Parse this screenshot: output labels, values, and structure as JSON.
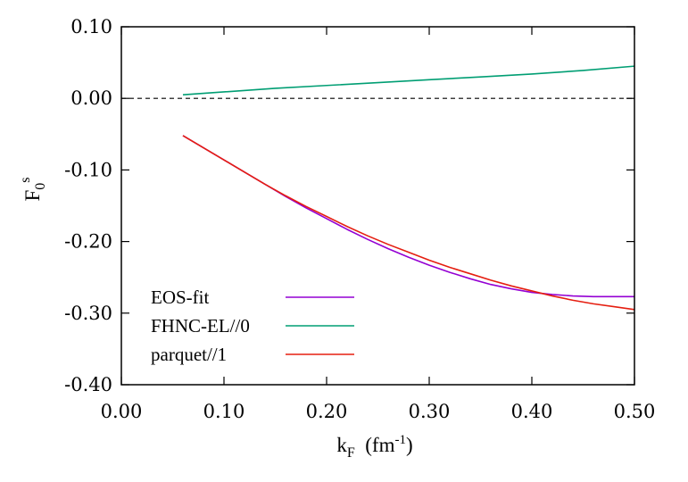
{
  "chart_data": {
    "type": "line",
    "xlabel": {
      "main": "k",
      "sub": "F",
      "unit_prefix": "(fm",
      "unit_sup": "-1",
      "unit_suffix": ")"
    },
    "ylabel": {
      "main": "F",
      "sub": "0",
      "sup": "s"
    },
    "xlim": [
      0.0,
      0.5
    ],
    "ylim": [
      -0.4,
      0.1
    ],
    "x_ticks": [
      "0.00",
      "0.10",
      "0.20",
      "0.30",
      "0.40",
      "0.50"
    ],
    "y_ticks": [
      "0.10",
      "0.00",
      "-0.10",
      "-0.20",
      "-0.30",
      "-0.40"
    ],
    "x_tick_values": [
      0.0,
      0.1,
      0.2,
      0.3,
      0.4,
      0.5
    ],
    "y_tick_values": [
      0.1,
      0.0,
      -0.1,
      -0.2,
      -0.3,
      -0.4
    ],
    "zero_line": {
      "y": 0.0,
      "style": "dashed",
      "color": "#000000"
    },
    "grid": false,
    "legend_position": "bottom-left",
    "series": [
      {
        "name": "EOS-fit",
        "color": "#9400d3",
        "x": [
          0.06,
          0.08,
          0.1,
          0.12,
          0.14,
          0.16,
          0.18,
          0.2,
          0.22,
          0.24,
          0.26,
          0.28,
          0.3,
          0.32,
          0.34,
          0.36,
          0.38,
          0.4,
          0.42,
          0.44,
          0.46,
          0.48,
          0.5
        ],
        "y": [
          -0.052,
          -0.069,
          -0.086,
          -0.103,
          -0.12,
          -0.137,
          -0.153,
          -0.168,
          -0.183,
          -0.197,
          -0.21,
          -0.222,
          -0.233,
          -0.243,
          -0.252,
          -0.26,
          -0.266,
          -0.271,
          -0.274,
          -0.276,
          -0.277,
          -0.277,
          -0.277
        ]
      },
      {
        "name": "FHNC-EL//0",
        "color": "#009e73",
        "x": [
          0.06,
          0.1,
          0.15,
          0.2,
          0.25,
          0.3,
          0.35,
          0.4,
          0.45,
          0.5
        ],
        "y": [
          0.005,
          0.009,
          0.014,
          0.018,
          0.022,
          0.026,
          0.03,
          0.034,
          0.039,
          0.045
        ]
      },
      {
        "name": "parquet//1",
        "color": "#e51e10",
        "x": [
          0.06,
          0.08,
          0.1,
          0.12,
          0.14,
          0.16,
          0.18,
          0.2,
          0.22,
          0.24,
          0.26,
          0.28,
          0.3,
          0.32,
          0.34,
          0.36,
          0.38,
          0.4,
          0.42,
          0.44,
          0.46,
          0.48,
          0.5
        ],
        "y": [
          -0.052,
          -0.069,
          -0.086,
          -0.103,
          -0.12,
          -0.136,
          -0.151,
          -0.165,
          -0.179,
          -0.192,
          -0.204,
          -0.215,
          -0.226,
          -0.236,
          -0.245,
          -0.254,
          -0.262,
          -0.269,
          -0.276,
          -0.282,
          -0.287,
          -0.291,
          -0.295
        ]
      }
    ]
  }
}
